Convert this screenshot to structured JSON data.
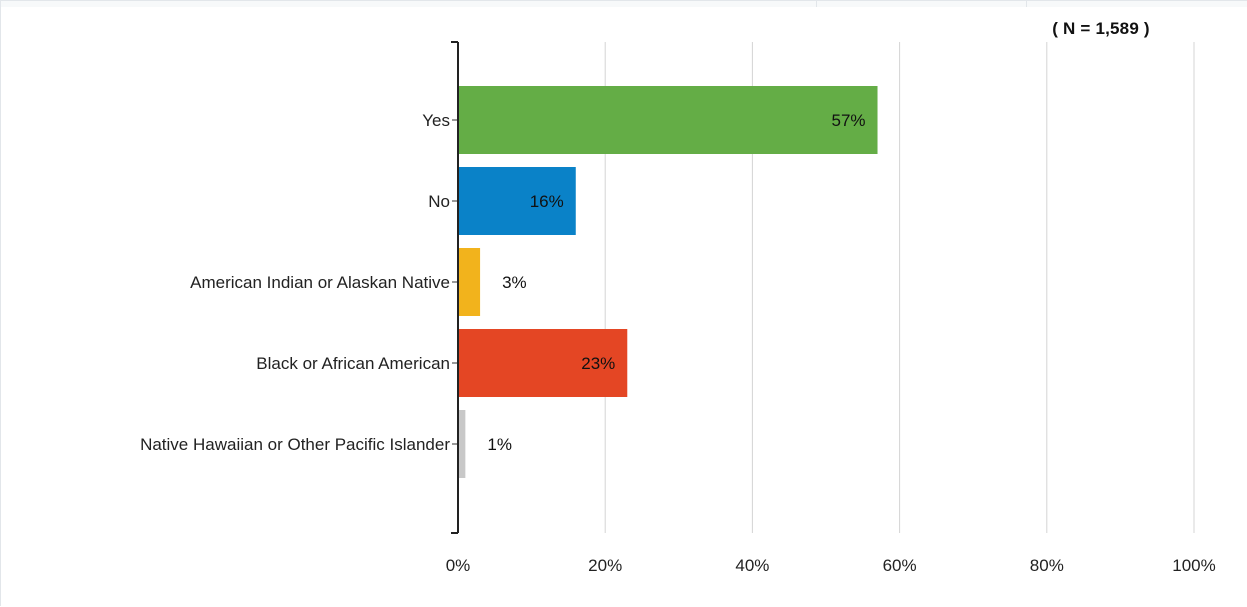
{
  "header": {
    "sample_size_label": "( N = 1,589 )"
  },
  "chart_data": {
    "type": "bar",
    "orientation": "horizontal",
    "categories": [
      "Yes",
      "No",
      "American Indian or Alaskan Native",
      "Black or African American",
      "Native Hawaiian or Other Pacific Islander"
    ],
    "values": [
      57,
      16,
      3,
      23,
      1
    ],
    "data_labels": [
      "57%",
      "16%",
      "3%",
      "23%",
      "1%"
    ],
    "colors": [
      "#64ad46",
      "#0a82c8",
      "#f2b31c",
      "#e44624",
      "#c8c8c8"
    ],
    "x_ticks": [
      "0%",
      "20%",
      "40%",
      "60%",
      "80%",
      "100%"
    ],
    "xlim": [
      0,
      100
    ],
    "grid": true,
    "title": "",
    "xlabel": "",
    "ylabel": ""
  }
}
